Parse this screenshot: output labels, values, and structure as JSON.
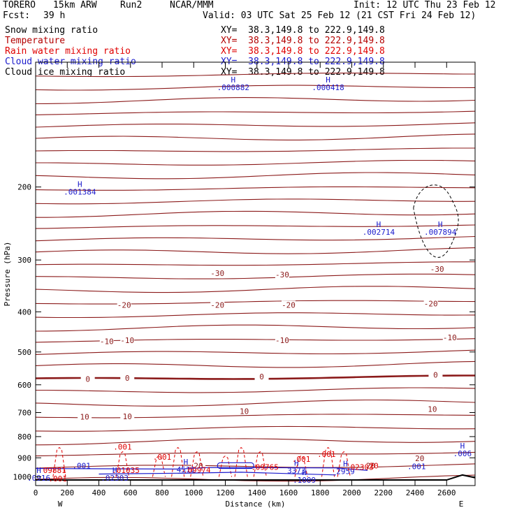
{
  "header": {
    "model": "TORERO",
    "resolution": "15km ARW",
    "run": "Run2",
    "org": "NCAR/MMM",
    "init": "Init: 12 UTC Thu 23 Feb 12",
    "fcst_label": "Fcst:",
    "fcst_value": "39 h",
    "valid": "Valid: 03 UTC Sat 25 Feb 12 (21 CST Fri 24 Feb 12)"
  },
  "legend": [
    {
      "label": "Snow mixing ratio",
      "xy": "XY=  38.3,149.8 to 222.9,149.8",
      "color": "#000000"
    },
    {
      "label": "Temperature",
      "xy": "XY=  38.3,149.8 to 222.9,149.8",
      "color": "#b30000"
    },
    {
      "label": "Rain water mixing ratio",
      "xy": "XY=  38.3,149.8 to 222.9,149.8",
      "color": "#e00000"
    },
    {
      "label": "Cloud water mixing ratio",
      "xy": "XY=  38.3,149.8 to 222.9,149.8",
      "color": "#1a1acc"
    },
    {
      "label": "Cloud ice mixing ratio",
      "xy": "XY=  38.3,149.8 to 222.9,149.8",
      "color": "#000000"
    }
  ],
  "chart_data": {
    "type": "line",
    "xlabel": "Distance (km)",
    "ylabel": "Pressure (hPa)",
    "xlim": [
      0,
      2780
    ],
    "ylim": [
      1050,
      100
    ],
    "x_ticks": [
      0,
      200,
      400,
      600,
      800,
      1000,
      1200,
      1400,
      1600,
      1800,
      2000,
      2200,
      2400,
      2600
    ],
    "y_ticks": [
      200,
      300,
      400,
      500,
      600,
      700,
      800,
      900,
      1000
    ],
    "y_scale": "log-pressure",
    "left_end": "W",
    "right_end": "E",
    "temperature_labels": [
      {
        "text": "-30",
        "x": 1150,
        "p": 325
      },
      {
        "text": "-30",
        "x": 1560,
        "p": 328
      },
      {
        "text": "-30",
        "x": 2540,
        "p": 318
      },
      {
        "text": "-20",
        "x": 560,
        "p": 388
      },
      {
        "text": "-20",
        "x": 1150,
        "p": 388
      },
      {
        "text": "-20",
        "x": 1600,
        "p": 388
      },
      {
        "text": "-20",
        "x": 2500,
        "p": 385
      },
      {
        "text": "-10",
        "x": 450,
        "p": 475
      },
      {
        "text": "-10",
        "x": 580,
        "p": 472
      },
      {
        "text": "-10",
        "x": 1560,
        "p": 472
      },
      {
        "text": "-10",
        "x": 2620,
        "p": 465
      },
      {
        "text": "0",
        "x": 330,
        "p": 585
      },
      {
        "text": "0",
        "x": 580,
        "p": 582
      },
      {
        "text": "0",
        "x": 1430,
        "p": 578
      },
      {
        "text": "0",
        "x": 2530,
        "p": 572
      },
      {
        "text": "10",
        "x": 310,
        "p": 722
      },
      {
        "text": "10",
        "x": 580,
        "p": 720
      },
      {
        "text": "10",
        "x": 1320,
        "p": 700
      },
      {
        "text": "10",
        "x": 2510,
        "p": 692
      },
      {
        "text": "20",
        "x": 2430,
        "p": 910
      },
      {
        "text": "20",
        "x": 1030,
        "p": 947
      },
      {
        "text": "20",
        "x": 2120,
        "p": 947
      }
    ],
    "temperature_isotherm_count": 33,
    "highs": [
      {
        "text": "H",
        "value": ".001384",
        "x": 280,
        "p": 200
      },
      {
        "text": "H",
        "value": ".002714",
        "x": 2170,
        "p": 250
      },
      {
        "text": "H",
        "value": ".007894",
        "x": 2560,
        "p": 250
      },
      {
        "text": "H",
        "value": ".000882",
        "x": 1250,
        "p": 112
      },
      {
        "text": "H",
        "value": ".000418",
        "x": 1850,
        "p": 112
      },
      {
        "text": "H",
        "value": ".006",
        "x": 2700,
        "p": 855
      },
      {
        "text": "H",
        "value": "4511",
        "x": 950,
        "p": 935
      },
      {
        "text": "H",
        "value": "3373",
        "x": 1650,
        "p": 940
      },
      {
        "text": "H",
        "value": "2959",
        "x": 1960,
        "p": 943
      },
      {
        "text": "H",
        "value": ".0916",
        "x": 20,
        "p": 980
      },
      {
        "text": "H",
        "value": ".02303",
        "x": 500,
        "p": 980
      },
      {
        "text": "H",
        "value": ".1009",
        "x": 1700,
        "p": 990
      }
    ],
    "rain_labels": [
      {
        "text": ".001",
        "x": 550,
        "p": 860
      },
      {
        "text": ".001",
        "x": 800,
        "p": 910
      },
      {
        "text": ".001",
        "x": 1680,
        "p": 920
      },
      {
        "text": ".001",
        "x": 1840,
        "p": 895
      },
      {
        "text": ".001",
        "x": 140,
        "p": 1025
      },
      {
        "text": ".09765",
        "x": 1450,
        "p": 962
      },
      {
        "text": ".09974",
        "x": 1020,
        "p": 978
      },
      {
        "text": ".02303",
        "x": 2050,
        "p": 962
      },
      {
        "text": "09881",
        "x": 120,
        "p": 980
      },
      {
        "text": ".01035",
        "x": 570,
        "p": 980
      },
      {
        "text": "20",
        "x": 2140,
        "p": 955
      }
    ],
    "cloud_labels": [
      {
        "text": ".001",
        "x": 290,
        "p": 955
      },
      {
        "text": ".001",
        "x": 2410,
        "p": 958
      }
    ]
  }
}
